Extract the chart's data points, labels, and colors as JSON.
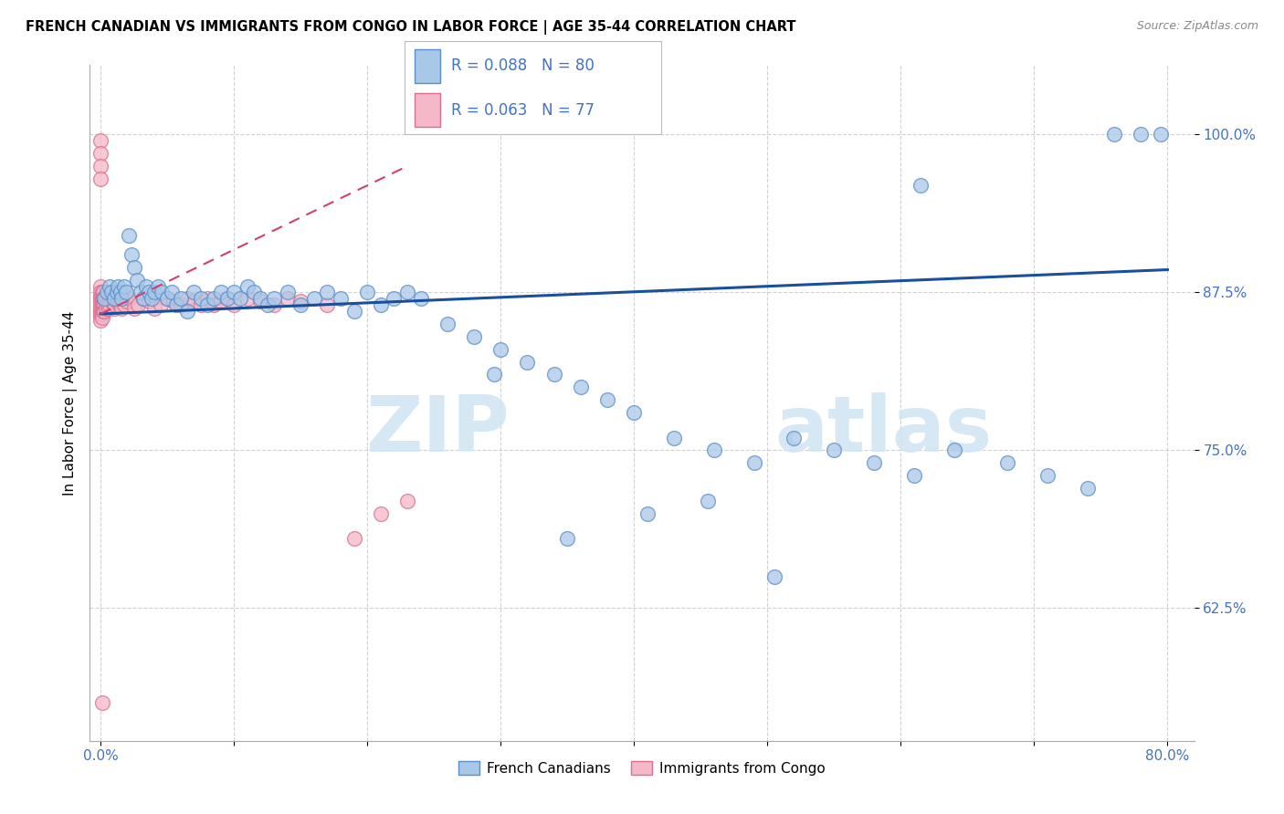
{
  "title": "FRENCH CANADIAN VS IMMIGRANTS FROM CONGO IN LABOR FORCE | AGE 35-44 CORRELATION CHART",
  "source": "Source: ZipAtlas.com",
  "ylabel": "In Labor Force | Age 35-44",
  "xlim": [
    -0.008,
    0.82
  ],
  "ylim": [
    0.52,
    1.055
  ],
  "xticks": [
    0.0,
    0.1,
    0.2,
    0.3,
    0.4,
    0.5,
    0.6,
    0.7,
    0.8
  ],
  "xticklabels": [
    "0.0%",
    "",
    "",
    "",
    "",
    "",
    "",
    "",
    "80.0%"
  ],
  "yticks": [
    0.625,
    0.75,
    0.875,
    1.0
  ],
  "yticklabels": [
    "62.5%",
    "75.0%",
    "87.5%",
    "100.0%"
  ],
  "R_blue": 0.088,
  "N_blue": 80,
  "R_pink": 0.063,
  "N_pink": 77,
  "legend_blue": "French Canadians",
  "legend_pink": "Immigrants from Congo",
  "blue_face": "#a8c8e8",
  "blue_edge": "#5b8dc8",
  "pink_face": "#f4b8c8",
  "pink_edge": "#d87090",
  "trend_blue_color": "#1a4f9c",
  "trend_pink_color": "#d04070",
  "tick_color": "#4472c4",
  "watermark_color": "#d0e4f4",
  "blue_x": [
    0.003,
    0.005,
    0.007,
    0.008,
    0.01,
    0.012,
    0.013,
    0.015,
    0.016,
    0.018,
    0.019,
    0.021,
    0.023,
    0.025,
    0.027,
    0.03,
    0.032,
    0.034,
    0.036,
    0.038,
    0.04,
    0.043,
    0.046,
    0.05,
    0.053,
    0.057,
    0.06,
    0.065,
    0.07,
    0.075,
    0.08,
    0.085,
    0.09,
    0.095,
    0.1,
    0.105,
    0.11,
    0.115,
    0.12,
    0.125,
    0.13,
    0.14,
    0.15,
    0.16,
    0.17,
    0.18,
    0.19,
    0.2,
    0.21,
    0.22,
    0.23,
    0.24,
    0.26,
    0.28,
    0.3,
    0.32,
    0.34,
    0.36,
    0.38,
    0.4,
    0.43,
    0.46,
    0.49,
    0.52,
    0.55,
    0.58,
    0.61,
    0.64,
    0.68,
    0.71,
    0.74,
    0.76,
    0.78,
    0.795,
    0.35,
    0.41,
    0.455,
    0.505,
    0.295,
    0.615
  ],
  "blue_y": [
    0.87,
    0.875,
    0.88,
    0.875,
    0.87,
    0.875,
    0.88,
    0.875,
    0.87,
    0.88,
    0.875,
    0.92,
    0.905,
    0.895,
    0.885,
    0.875,
    0.87,
    0.88,
    0.875,
    0.87,
    0.875,
    0.88,
    0.875,
    0.87,
    0.875,
    0.865,
    0.87,
    0.86,
    0.875,
    0.87,
    0.865,
    0.87,
    0.875,
    0.87,
    0.875,
    0.87,
    0.88,
    0.875,
    0.87,
    0.865,
    0.87,
    0.875,
    0.865,
    0.87,
    0.875,
    0.87,
    0.86,
    0.875,
    0.865,
    0.87,
    0.875,
    0.87,
    0.85,
    0.84,
    0.83,
    0.82,
    0.81,
    0.8,
    0.79,
    0.78,
    0.76,
    0.75,
    0.74,
    0.76,
    0.75,
    0.74,
    0.73,
    0.75,
    0.74,
    0.73,
    0.72,
    1.0,
    1.0,
    1.0,
    0.68,
    0.7,
    0.71,
    0.65,
    0.81,
    0.96
  ],
  "pink_x": [
    0.0,
    0.0,
    0.0,
    0.0,
    0.0,
    0.0,
    0.0,
    0.0,
    0.0,
    0.0,
    0.0,
    0.0,
    0.0,
    0.0,
    0.0,
    0.001,
    0.001,
    0.001,
    0.001,
    0.001,
    0.001,
    0.001,
    0.002,
    0.002,
    0.002,
    0.002,
    0.003,
    0.003,
    0.003,
    0.004,
    0.004,
    0.005,
    0.005,
    0.006,
    0.006,
    0.007,
    0.007,
    0.008,
    0.009,
    0.01,
    0.01,
    0.011,
    0.012,
    0.013,
    0.014,
    0.015,
    0.016,
    0.018,
    0.02,
    0.022,
    0.025,
    0.028,
    0.032,
    0.036,
    0.04,
    0.045,
    0.05,
    0.055,
    0.06,
    0.065,
    0.07,
    0.075,
    0.08,
    0.085,
    0.09,
    0.095,
    0.1,
    0.11,
    0.12,
    0.13,
    0.14,
    0.15,
    0.17,
    0.19,
    0.21,
    0.23,
    0.001
  ],
  "pink_y": [
    0.995,
    0.985,
    0.975,
    0.965,
    0.88,
    0.875,
    0.872,
    0.87,
    0.868,
    0.865,
    0.862,
    0.86,
    0.858,
    0.856,
    0.853,
    0.875,
    0.87,
    0.868,
    0.865,
    0.86,
    0.858,
    0.855,
    0.875,
    0.87,
    0.865,
    0.86,
    0.87,
    0.865,
    0.86,
    0.868,
    0.862,
    0.87,
    0.865,
    0.868,
    0.862,
    0.87,
    0.865,
    0.868,
    0.87,
    0.868,
    0.862,
    0.865,
    0.868,
    0.87,
    0.865,
    0.868,
    0.862,
    0.865,
    0.868,
    0.87,
    0.862,
    0.865,
    0.87,
    0.868,
    0.862,
    0.865,
    0.87,
    0.868,
    0.865,
    0.87,
    0.868,
    0.865,
    0.87,
    0.865,
    0.868,
    0.87,
    0.865,
    0.87,
    0.868,
    0.865,
    0.87,
    0.868,
    0.865,
    0.68,
    0.7,
    0.71,
    0.55
  ],
  "trend_blue_x0": 0.0,
  "trend_blue_y0": 0.858,
  "trend_blue_x1": 0.8,
  "trend_blue_y1": 0.893,
  "trend_pink_x0": 0.0,
  "trend_pink_y0": 0.858,
  "trend_pink_x1": 0.23,
  "trend_pink_y1": 0.975
}
